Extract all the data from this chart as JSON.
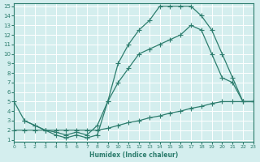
{
  "xlabel": "Humidex (Indice chaleur)",
  "xlim": [
    0,
    23
  ],
  "ylim": [
    1,
    15
  ],
  "xticks": [
    0,
    1,
    2,
    3,
    4,
    5,
    6,
    7,
    8,
    9,
    10,
    11,
    12,
    13,
    14,
    15,
    16,
    17,
    18,
    19,
    20,
    21,
    22,
    23
  ],
  "yticks": [
    1,
    2,
    3,
    4,
    5,
    6,
    7,
    8,
    9,
    10,
    11,
    12,
    13,
    14,
    15
  ],
  "bg_color": "#d4eeee",
  "grid_color": "#b8dada",
  "line_color": "#2d7d6e",
  "line1_x": [
    0,
    1,
    2,
    3,
    4,
    5,
    6,
    7,
    8,
    9,
    10,
    11,
    12,
    13,
    14,
    15,
    16,
    17,
    18,
    19,
    20,
    21,
    22,
    23
  ],
  "line1_y": [
    5.0,
    3.0,
    2.5,
    2.0,
    1.8,
    1.5,
    1.8,
    1.5,
    2.5,
    5.0,
    7.0,
    8.5,
    10.0,
    10.5,
    11.0,
    11.5,
    12.0,
    13.0,
    12.5,
    10.0,
    7.5,
    7.0,
    5.0,
    5.0
  ],
  "line2_x": [
    0,
    1,
    2,
    3,
    4,
    5,
    6,
    7,
    8,
    9,
    10,
    11,
    12,
    13,
    14,
    15,
    16,
    17,
    18,
    19,
    20,
    21,
    22,
    23
  ],
  "line2_y": [
    2.0,
    2.0,
    2.0,
    2.0,
    2.0,
    2.0,
    2.0,
    2.0,
    2.0,
    2.2,
    2.5,
    2.8,
    3.0,
    3.3,
    3.5,
    3.8,
    4.0,
    4.3,
    4.5,
    4.8,
    5.0,
    5.0,
    5.0,
    5.0
  ],
  "line3_x": [
    1,
    2,
    3,
    4,
    5,
    6,
    7,
    8,
    9,
    10,
    11,
    12,
    13,
    14,
    15,
    16,
    17,
    18,
    19,
    20,
    21,
    22,
    23
  ],
  "line3_y": [
    3.0,
    2.5,
    2.0,
    1.5,
    1.2,
    1.5,
    1.2,
    1.5,
    5.0,
    9.0,
    11.0,
    12.5,
    13.5,
    15.0,
    15.0,
    15.0,
    15.0,
    14.0,
    12.5,
    10.0,
    7.5,
    5.0,
    5.0
  ]
}
